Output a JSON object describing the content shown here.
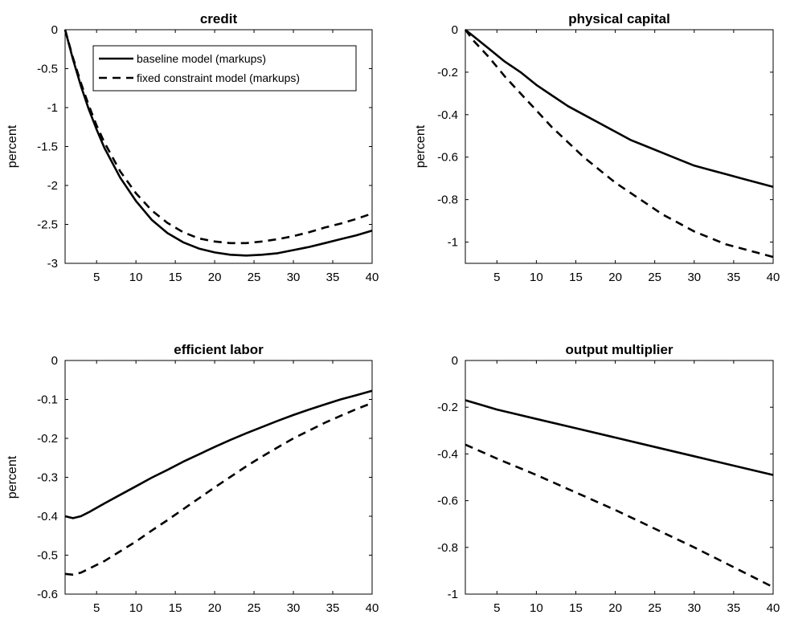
{
  "chart_data": [
    {
      "type": "line",
      "title": "credit",
      "xlabel": "",
      "ylabel": "percent",
      "xlim": [
        1,
        40
      ],
      "ylim": [
        -3,
        0
      ],
      "xticks": [
        5,
        10,
        15,
        20,
        25,
        30,
        35,
        40
      ],
      "xtick_labels": [
        "5",
        "10",
        "15",
        "20",
        "25",
        "30",
        "35",
        "40"
      ],
      "yticks": [
        0,
        -0.5,
        -1,
        -1.5,
        -2,
        -2.5,
        -3
      ],
      "ytick_labels": [
        "0",
        "-0.5",
        "-1",
        "-1.5",
        "-2",
        "-2.5",
        "-3"
      ],
      "legend": {
        "placement": "top-right",
        "entries": [
          "baseline model (markups)",
          "fixed constraint model (markups)"
        ]
      },
      "series": [
        {
          "style": "solid",
          "x": [
            1,
            2,
            3,
            4,
            5,
            6,
            8,
            10,
            12,
            14,
            16,
            18,
            20,
            22,
            24,
            26,
            28,
            30,
            32,
            34,
            36,
            38,
            40
          ],
          "y": [
            0,
            -0.38,
            -0.72,
            -1.02,
            -1.28,
            -1.52,
            -1.9,
            -2.2,
            -2.44,
            -2.61,
            -2.73,
            -2.81,
            -2.86,
            -2.89,
            -2.9,
            -2.89,
            -2.87,
            -2.83,
            -2.79,
            -2.74,
            -2.69,
            -2.64,
            -2.58
          ]
        },
        {
          "style": "dashed",
          "x": [
            1,
            2,
            3,
            4,
            5,
            6,
            8,
            10,
            12,
            14,
            16,
            18,
            20,
            22,
            24,
            26,
            28,
            30,
            32,
            34,
            36,
            38,
            40
          ],
          "y": [
            0,
            -0.36,
            -0.68,
            -0.97,
            -1.23,
            -1.45,
            -1.82,
            -2.1,
            -2.32,
            -2.48,
            -2.6,
            -2.68,
            -2.72,
            -2.74,
            -2.74,
            -2.72,
            -2.69,
            -2.65,
            -2.6,
            -2.54,
            -2.49,
            -2.43,
            -2.36
          ]
        }
      ]
    },
    {
      "type": "line",
      "title": "physical capital",
      "xlabel": "",
      "ylabel": "percent",
      "xlim": [
        1,
        40
      ],
      "ylim": [
        -1.1,
        0
      ],
      "xticks": [
        5,
        10,
        15,
        20,
        25,
        30,
        35,
        40
      ],
      "xtick_labels": [
        "5",
        "10",
        "15",
        "20",
        "25",
        "30",
        "35",
        "40"
      ],
      "yticks": [
        0,
        -0.2,
        -0.4,
        -0.6,
        -0.8,
        -1
      ],
      "ytick_labels": [
        "0",
        "-0.2",
        "-0.4",
        "-0.6",
        "-0.8",
        "-1"
      ],
      "series": [
        {
          "style": "solid",
          "x": [
            1,
            2,
            4,
            6,
            8,
            10,
            12,
            14,
            16,
            18,
            20,
            22,
            24,
            26,
            28,
            30,
            32,
            34,
            36,
            38,
            40
          ],
          "y": [
            0,
            -0.03,
            -0.09,
            -0.15,
            -0.2,
            -0.26,
            -0.31,
            -0.36,
            -0.4,
            -0.44,
            -0.48,
            -0.52,
            -0.55,
            -0.58,
            -0.61,
            -0.64,
            -0.66,
            -0.68,
            -0.7,
            -0.72,
            -0.74
          ]
        },
        {
          "style": "dashed",
          "x": [
            1,
            2,
            4,
            6,
            8,
            10,
            12,
            14,
            16,
            18,
            20,
            22,
            24,
            26,
            28,
            30,
            32,
            34,
            36,
            38,
            40
          ],
          "y": [
            0,
            -0.05,
            -0.13,
            -0.22,
            -0.3,
            -0.38,
            -0.46,
            -0.53,
            -0.6,
            -0.66,
            -0.72,
            -0.77,
            -0.82,
            -0.87,
            -0.91,
            -0.95,
            -0.98,
            -1.01,
            -1.03,
            -1.05,
            -1.07
          ]
        }
      ]
    },
    {
      "type": "line",
      "title": "efficient labor",
      "xlabel": "",
      "ylabel": "percent",
      "xlim": [
        1,
        40
      ],
      "ylim": [
        -0.6,
        0
      ],
      "xticks": [
        5,
        10,
        15,
        20,
        25,
        30,
        35,
        40
      ],
      "xtick_labels": [
        "5",
        "10",
        "15",
        "20",
        "25",
        "30",
        "35",
        "40"
      ],
      "yticks": [
        0,
        -0.1,
        -0.2,
        -0.3,
        -0.4,
        -0.5,
        -0.6
      ],
      "ytick_labels": [
        "0",
        "-0.1",
        "-0.2",
        "-0.3",
        "-0.4",
        "-0.5",
        "-0.6"
      ],
      "series": [
        {
          "style": "solid",
          "x": [
            1,
            2,
            3,
            4,
            6,
            8,
            10,
            12,
            14,
            16,
            18,
            20,
            22,
            24,
            26,
            28,
            30,
            32,
            34,
            36,
            38,
            40
          ],
          "y": [
            -0.4,
            -0.405,
            -0.4,
            -0.39,
            -0.367,
            -0.345,
            -0.323,
            -0.301,
            -0.281,
            -0.26,
            -0.241,
            -0.222,
            -0.204,
            -0.187,
            -0.171,
            -0.155,
            -0.14,
            -0.126,
            -0.113,
            -0.1,
            -0.089,
            -0.078
          ]
        },
        {
          "style": "dashed",
          "x": [
            1,
            2,
            3,
            4,
            6,
            8,
            10,
            12,
            14,
            16,
            18,
            20,
            22,
            24,
            26,
            28,
            30,
            32,
            34,
            36,
            38,
            40
          ],
          "y": [
            -0.548,
            -0.55,
            -0.545,
            -0.535,
            -0.515,
            -0.49,
            -0.465,
            -0.437,
            -0.41,
            -0.382,
            -0.354,
            -0.326,
            -0.299,
            -0.272,
            -0.247,
            -0.223,
            -0.2,
            -0.18,
            -0.16,
            -0.142,
            -0.125,
            -0.109
          ]
        }
      ]
    },
    {
      "type": "line",
      "title": "output multiplier",
      "xlabel": "",
      "ylabel": "",
      "xlim": [
        1,
        40
      ],
      "ylim": [
        -1,
        0
      ],
      "xticks": [
        5,
        10,
        15,
        20,
        25,
        30,
        35,
        40
      ],
      "xtick_labels": [
        "5",
        "10",
        "15",
        "20",
        "25",
        "30",
        "35",
        "40"
      ],
      "yticks": [
        0,
        -0.2,
        -0.4,
        -0.6,
        -0.8,
        -1
      ],
      "ytick_labels": [
        "0",
        "-0.2",
        "-0.4",
        "-0.6",
        "-0.8",
        "-1"
      ],
      "series": [
        {
          "style": "solid",
          "x": [
            1,
            3,
            5,
            10,
            15,
            20,
            25,
            30,
            35,
            40
          ],
          "y": [
            -0.17,
            -0.19,
            -0.21,
            -0.25,
            -0.29,
            -0.33,
            -0.37,
            -0.41,
            -0.45,
            -0.49
          ]
        },
        {
          "style": "dashed",
          "x": [
            1,
            5,
            10,
            15,
            20,
            25,
            30,
            35,
            40
          ],
          "y": [
            -0.36,
            -0.42,
            -0.49,
            -0.565,
            -0.64,
            -0.72,
            -0.8,
            -0.885,
            -0.97
          ]
        }
      ]
    }
  ]
}
